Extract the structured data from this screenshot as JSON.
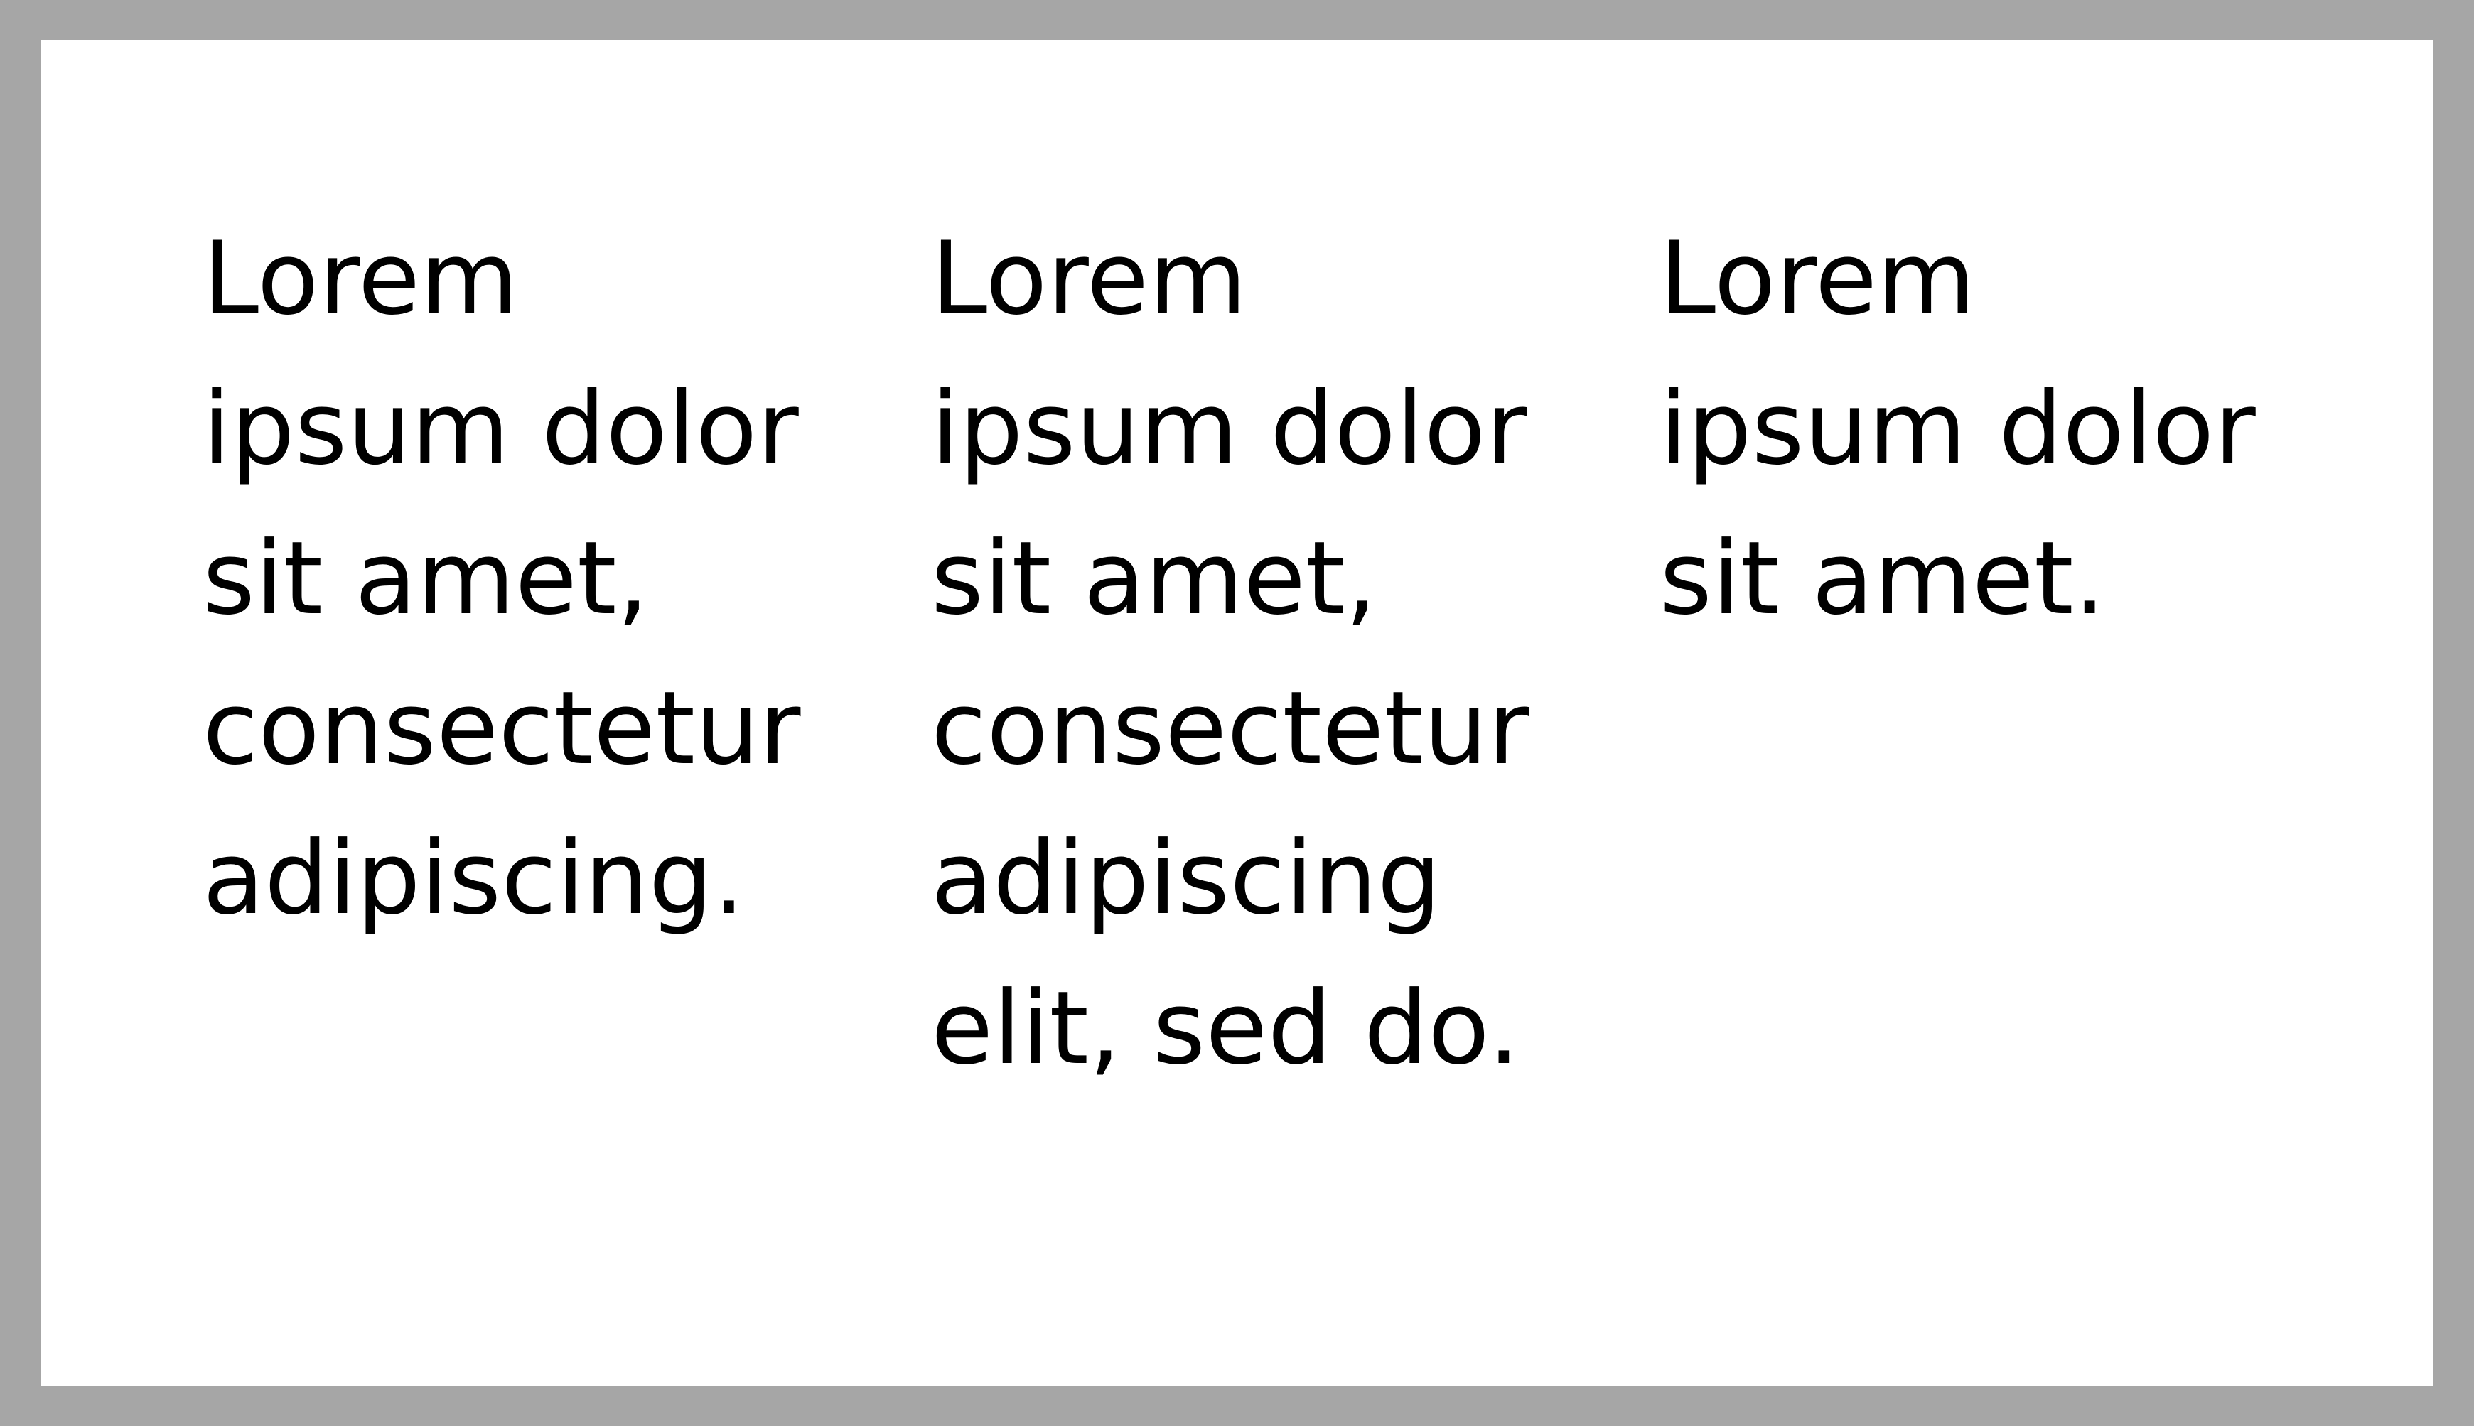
{
  "columns": [
    {
      "text": "Lorem\nipsum dolor\nsit amet,\nconsectetur\nadipiscing."
    },
    {
      "text": "Lorem\nipsum dolor\nsit amet,\nconsectetur\nadipiscing\nelit, sed do."
    },
    {
      "text": "Lorem\nipsum dolor\nsit amet."
    }
  ]
}
